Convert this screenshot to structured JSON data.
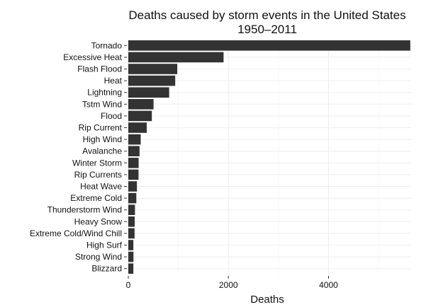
{
  "chart_data": {
    "type": "bar",
    "orientation": "horizontal",
    "title": "Deaths caused by storm events in the United States",
    "subtitle": "1950–2011",
    "xlabel": "Deaths",
    "ylabel": "",
    "xlim": [
      0,
      5650
    ],
    "xticks": [
      0,
      2000,
      4000
    ],
    "xtick_labels": [
      "0",
      "2000",
      "4000"
    ],
    "grid": true,
    "legend": "none",
    "bar_color": "#333333",
    "categories": [
      "Tornado",
      "Excessive Heat",
      "Flash Flood",
      "Heat",
      "Lightning",
      "Tstm Wind",
      "Flood",
      "Rip Current",
      "High Wind",
      "Avalanche",
      "Winter Storm",
      "Rip Currents",
      "Heat Wave",
      "Extreme Cold",
      "Thunderstorm Wind",
      "Heavy Snow",
      "Extreme Cold/Wind Chill",
      "High Surf",
      "Strong Wind",
      "Blizzard"
    ],
    "values": [
      5633,
      1903,
      978,
      937,
      816,
      504,
      470,
      368,
      248,
      224,
      206,
      204,
      172,
      160,
      133,
      127,
      125,
      101,
      103,
      101
    ]
  }
}
